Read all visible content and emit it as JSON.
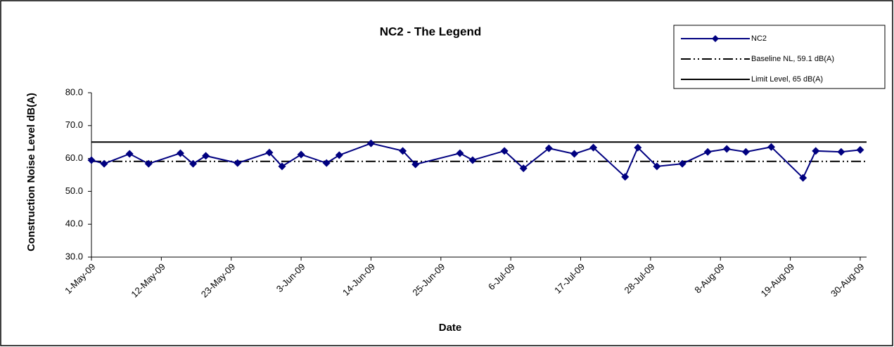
{
  "chart_data": {
    "type": "line",
    "title": "NC2 - The Legend",
    "xlabel": "Date",
    "ylabel": "Construction Noise Level  dB(A)",
    "x": [
      "2009-05-01",
      "2009-05-03",
      "2009-05-07",
      "2009-05-10",
      "2009-05-15",
      "2009-05-17",
      "2009-05-19",
      "2009-05-24",
      "2009-05-29",
      "2009-05-31",
      "2009-06-03",
      "2009-06-07",
      "2009-06-09",
      "2009-06-14",
      "2009-06-19",
      "2009-06-21",
      "2009-06-28",
      "2009-06-30",
      "2009-07-05",
      "2009-07-08",
      "2009-07-12",
      "2009-07-16",
      "2009-07-19",
      "2009-07-24",
      "2009-07-26",
      "2009-07-29",
      "2009-08-02",
      "2009-08-06",
      "2009-08-09",
      "2009-08-12",
      "2009-08-16",
      "2009-08-21",
      "2009-08-23",
      "2009-08-27",
      "2009-08-30"
    ],
    "series": [
      {
        "name": "NC2",
        "color": "#000080",
        "marker": "diamond",
        "values": [
          59.5,
          58.4,
          61.4,
          58.4,
          61.6,
          58.4,
          60.8,
          58.6,
          61.8,
          57.6,
          61.2,
          58.6,
          61.0,
          64.6,
          62.3,
          58.2,
          61.6,
          59.5,
          62.3,
          57.0,
          63.1,
          61.4,
          63.3,
          54.4,
          63.3,
          57.6,
          58.4,
          62.0,
          62.9,
          62.0,
          63.5,
          54.1,
          62.3,
          62.0,
          62.6
        ]
      }
    ],
    "reference_lines": [
      {
        "name": "Baseline NL, 59.1 dB(A)",
        "value": 59.1,
        "color": "#000000",
        "style": "dash-dot-dot"
      },
      {
        "name": "Limit Level, 65 dB(A)",
        "value": 65,
        "color": "#000000",
        "style": "solid"
      }
    ],
    "xlim": [
      "2009-05-01",
      "2009-08-31"
    ],
    "xticks": [
      {
        "value": "2009-05-01",
        "label": "1-May-09"
      },
      {
        "value": "2009-05-12",
        "label": "12-May-09"
      },
      {
        "value": "2009-05-23",
        "label": "23-May-09"
      },
      {
        "value": "2009-06-03",
        "label": "3-Jun-09"
      },
      {
        "value": "2009-06-14",
        "label": "14-Jun-09"
      },
      {
        "value": "2009-06-25",
        "label": "25-Jun-09"
      },
      {
        "value": "2009-07-06",
        "label": "6-Jul-09"
      },
      {
        "value": "2009-07-17",
        "label": "17-Jul-09"
      },
      {
        "value": "2009-07-28",
        "label": "28-Jul-09"
      },
      {
        "value": "2009-08-08",
        "label": "8-Aug-09"
      },
      {
        "value": "2009-08-19",
        "label": "19-Aug-09"
      },
      {
        "value": "2009-08-30",
        "label": "30-Aug-09"
      }
    ],
    "ylim": [
      30,
      80
    ],
    "yticks": [
      {
        "value": 30,
        "label": "30.0"
      },
      {
        "value": 40,
        "label": "40.0"
      },
      {
        "value": 50,
        "label": "50.0"
      },
      {
        "value": 60,
        "label": "60.0"
      },
      {
        "value": 70,
        "label": "70.0"
      },
      {
        "value": 80,
        "label": "80.0"
      }
    ],
    "grid": false,
    "legend": "upper right"
  }
}
